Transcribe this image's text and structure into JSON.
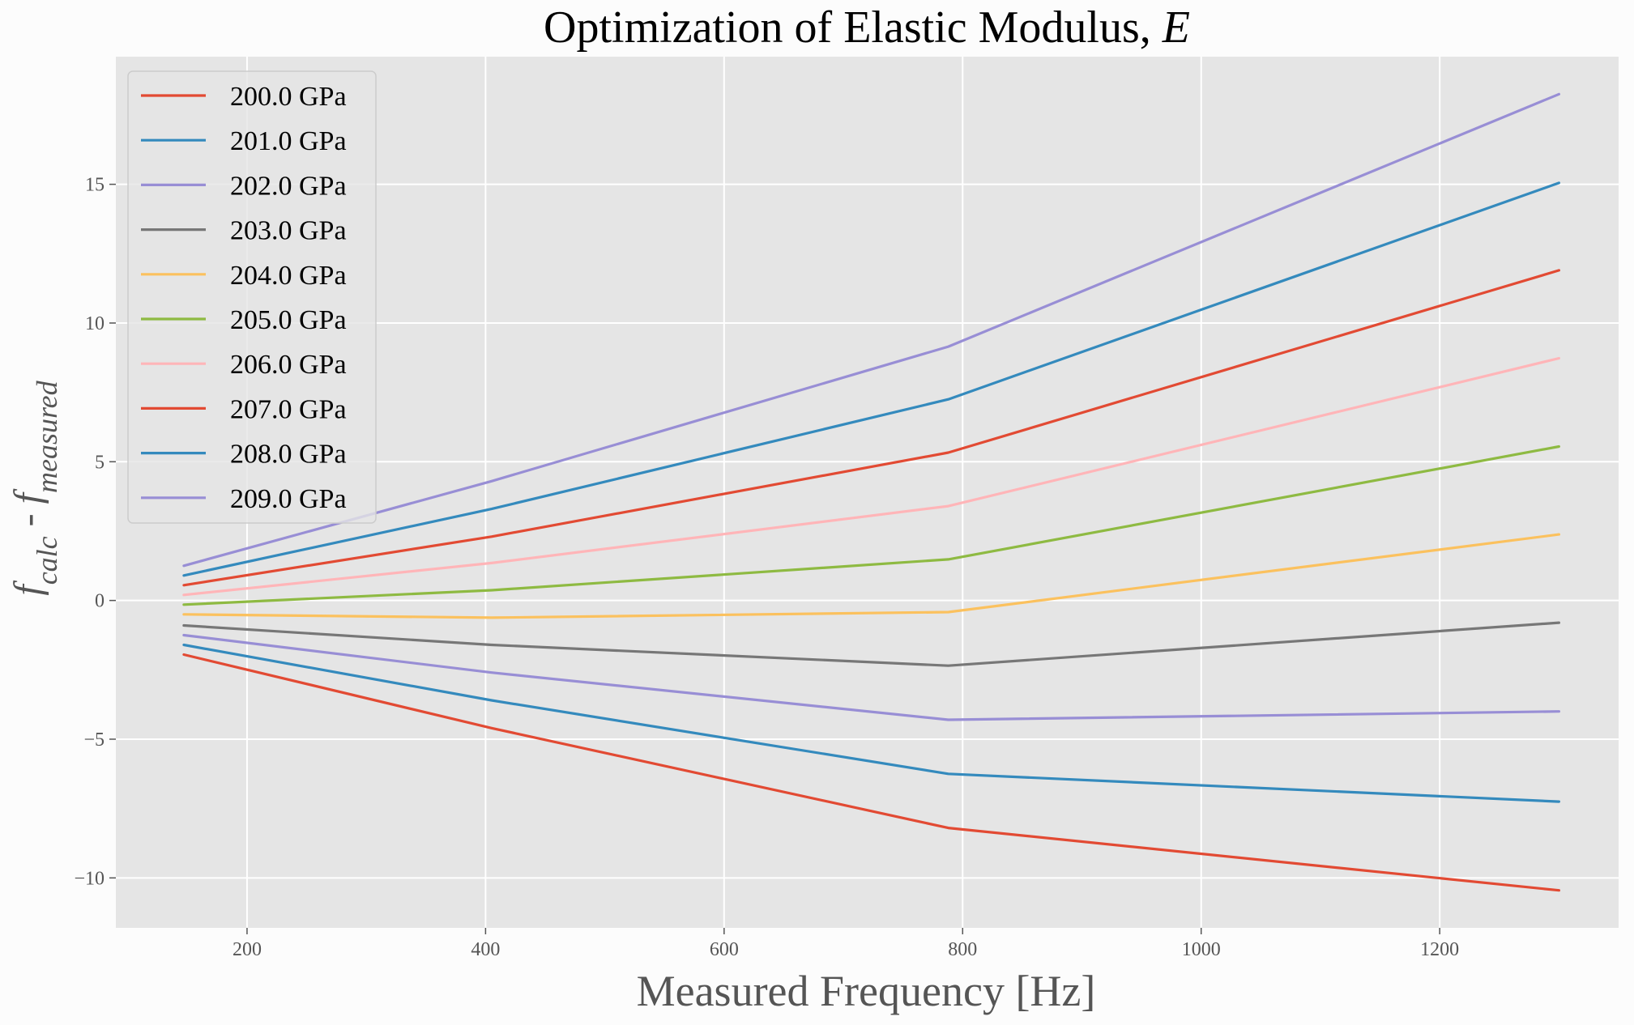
{
  "chart_data": {
    "type": "line",
    "title": "Optimization of Elastic Modulus, ",
    "title_var": "E",
    "xlabel": "Measured Frequency [Hz]",
    "ylabel": {
      "f1": "f",
      "sub1": "calc",
      "sep": " - ",
      "f2": "f",
      "sub2": "measured"
    },
    "xlim": [
      90,
      1350
    ],
    "ylim": [
      -11.8,
      19.6
    ],
    "xticks": [
      200,
      400,
      600,
      800,
      1000,
      1200
    ],
    "xtick_labels": [
      "200",
      "400",
      "600",
      "800",
      "1000",
      "1200"
    ],
    "yticks": [
      -10,
      -5,
      0,
      5,
      10,
      15
    ],
    "ytick_labels": [
      "−10",
      "−5",
      "0",
      "5",
      "10",
      "15"
    ],
    "grid": true,
    "legend_position": "top-left",
    "x": [
      147,
      405,
      788,
      1300
    ],
    "series": [
      {
        "name": "200.0 GPa",
        "color": "#E24A33",
        "values": [
          -1.95,
          -4.6,
          -8.2,
          -10.45
        ]
      },
      {
        "name": "201.0 GPa",
        "color": "#348ABD",
        "values": [
          -1.6,
          -3.6,
          -6.25,
          -7.25
        ]
      },
      {
        "name": "202.0 GPa",
        "color": "#988ED5",
        "values": [
          -1.25,
          -2.6,
          -4.3,
          -4.0
        ]
      },
      {
        "name": "203.0 GPa",
        "color": "#777777",
        "values": [
          -0.9,
          -1.6,
          -2.35,
          -0.8
        ]
      },
      {
        "name": "204.0 GPa",
        "color": "#FBC15E",
        "values": [
          -0.5,
          -0.62,
          -0.42,
          2.38
        ]
      },
      {
        "name": "205.0 GPa",
        "color": "#8EBA42",
        "values": [
          -0.15,
          0.37,
          1.48,
          5.55
        ]
      },
      {
        "name": "206.0 GPa",
        "color": "#FFB5B8",
        "values": [
          0.2,
          1.35,
          3.4,
          8.73
        ]
      },
      {
        "name": "207.0 GPa",
        "color": "#E24A33",
        "values": [
          0.55,
          2.3,
          5.33,
          11.9
        ]
      },
      {
        "name": "208.0 GPa",
        "color": "#348ABD",
        "values": [
          0.9,
          3.3,
          7.25,
          15.05
        ]
      },
      {
        "name": "209.0 GPa",
        "color": "#988ED5",
        "values": [
          1.25,
          4.3,
          9.15,
          18.25
        ]
      }
    ]
  }
}
